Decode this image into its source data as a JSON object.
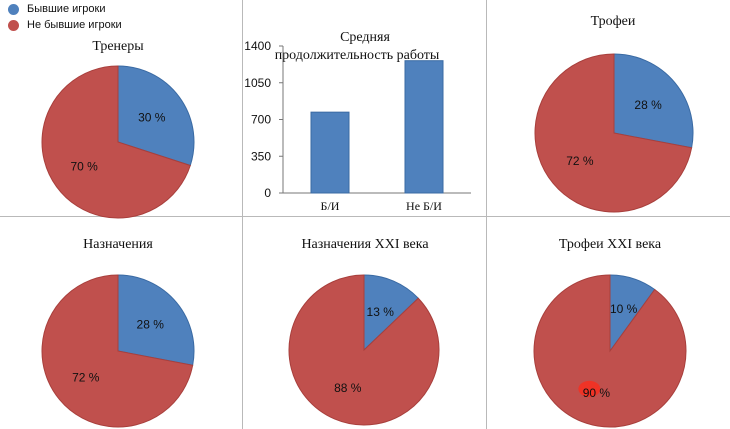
{
  "colors": {
    "former": "#4f81bd",
    "not_former": "#c0504d",
    "former_edge": "#3a6aa3",
    "not_former_edge": "#a83f3c",
    "highlight": "#ff2a1a"
  },
  "legend": [
    {
      "label": "Бывшие игроки",
      "color": "#4f81bd"
    },
    {
      "label": "Не бывшие игроки",
      "color": "#c0504d"
    }
  ],
  "chart_data": [
    {
      "type": "pie",
      "title": "Тренеры",
      "slices": [
        {
          "name": "Бывшие игроки",
          "value": 30,
          "label": "30 %"
        },
        {
          "name": "Не бывшие игроки",
          "value": 70,
          "label": "70 %"
        }
      ]
    },
    {
      "type": "bar",
      "title": "Средняя продолжительность работы",
      "title_lines": [
        "Средняя",
        "продолжительность работы"
      ],
      "categories": [
        "Б/И",
        "Не Б/И"
      ],
      "values": [
        770,
        1260
      ],
      "ylim": [
        0,
        1400
      ],
      "yticks": [
        "1400",
        "1050",
        "700",
        "350",
        "0"
      ]
    },
    {
      "type": "pie",
      "title": "Трофеи",
      "slices": [
        {
          "name": "Бывшие игроки",
          "value": 28,
          "label": "28 %"
        },
        {
          "name": "Не бывшие игроки",
          "value": 72,
          "label": "72 %"
        }
      ]
    },
    {
      "type": "pie",
      "title": "Назначения",
      "slices": [
        {
          "name": "Бывшие игроки",
          "value": 28,
          "label": "28 %"
        },
        {
          "name": "Не бывшие игроки",
          "value": 72,
          "label": "72 %"
        }
      ]
    },
    {
      "type": "pie",
      "title": "Назначения XXI века",
      "slices": [
        {
          "name": "Бывшие игроки",
          "value": 13,
          "label": "13 %"
        },
        {
          "name": "Не бывшие игроки",
          "value": 88,
          "label": "88 %"
        }
      ]
    },
    {
      "type": "pie",
      "title": "Трофеи XXI века",
      "slices": [
        {
          "name": "Бывшие игроки",
          "value": 10,
          "label": "10 %"
        },
        {
          "name": "Не бывшие игроки",
          "value": 90,
          "label": "90 %"
        }
      ]
    }
  ]
}
